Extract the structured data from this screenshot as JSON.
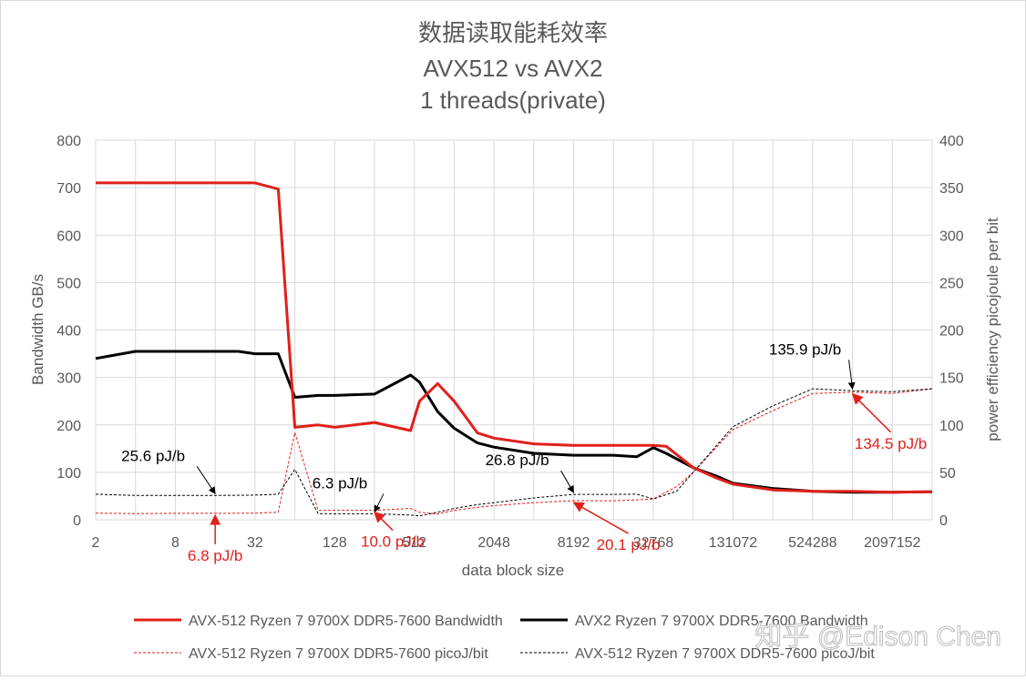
{
  "chart_data": {
    "type": "line",
    "title_lines": [
      "数据读取能耗效率",
      "AVX512 vs AVX2",
      "1 threads(private)"
    ],
    "xlabel": "data block size",
    "ylabel_left": "Bandwidth GB/s",
    "ylabel_right": "power efficiency picojoule per bit",
    "x_scale": "log2",
    "x_tick_labels": [
      "2",
      "8",
      "32",
      "128",
      "512",
      "2048",
      "8192",
      "32768",
      "131072",
      "524288",
      "2097152"
    ],
    "x_tick_values": [
      2,
      8,
      32,
      128,
      512,
      2048,
      8192,
      32768,
      131072,
      524288,
      2097152
    ],
    "xlim": [
      2,
      4194304
    ],
    "y_left_lim": [
      0,
      800
    ],
    "y_left_ticks": [
      0,
      100,
      200,
      300,
      400,
      500,
      600,
      700,
      800
    ],
    "y_right_lim": [
      0,
      400
    ],
    "y_right_ticks": [
      0,
      50,
      100,
      150,
      200,
      250,
      300,
      350,
      400
    ],
    "grid": true,
    "legend_position": "bottom",
    "series": [
      {
        "name": "AVX-512 Ryzen 7 9700X DDR5-7600 Bandwidth",
        "axis": "left",
        "style": "solid",
        "color": "#e0201b",
        "points": [
          [
            2,
            710
          ],
          [
            4,
            710
          ],
          [
            8,
            710
          ],
          [
            16,
            710
          ],
          [
            32,
            710
          ],
          [
            48,
            697
          ],
          [
            64,
            195
          ],
          [
            96,
            200
          ],
          [
            128,
            195
          ],
          [
            256,
            205
          ],
          [
            480,
            188
          ],
          [
            560,
            250
          ],
          [
            768,
            287
          ],
          [
            1024,
            250
          ],
          [
            1536,
            183
          ],
          [
            2048,
            172
          ],
          [
            4096,
            160
          ],
          [
            8192,
            157
          ],
          [
            16384,
            157
          ],
          [
            32768,
            157
          ],
          [
            40960,
            155
          ],
          [
            65536,
            110
          ],
          [
            98304,
            88
          ],
          [
            131072,
            75
          ],
          [
            262144,
            63
          ],
          [
            524288,
            60
          ],
          [
            1048576,
            60
          ],
          [
            2097152,
            58
          ],
          [
            4194304,
            59
          ]
        ]
      },
      {
        "name": "AVX2 Ryzen 7 9700X DDR5-7600 Bandwidth",
        "axis": "left",
        "style": "solid",
        "color": "#000000",
        "points": [
          [
            2,
            340
          ],
          [
            4,
            355
          ],
          [
            8,
            355
          ],
          [
            16,
            355
          ],
          [
            24,
            355
          ],
          [
            32,
            350
          ],
          [
            48,
            350
          ],
          [
            64,
            258
          ],
          [
            96,
            262
          ],
          [
            128,
            262
          ],
          [
            256,
            265
          ],
          [
            480,
            305
          ],
          [
            560,
            290
          ],
          [
            768,
            228
          ],
          [
            1024,
            193
          ],
          [
            1536,
            162
          ],
          [
            2048,
            153
          ],
          [
            4096,
            140
          ],
          [
            8192,
            136
          ],
          [
            16384,
            136
          ],
          [
            24576,
            133
          ],
          [
            32768,
            152
          ],
          [
            40960,
            140
          ],
          [
            65536,
            110
          ],
          [
            98304,
            92
          ],
          [
            131072,
            77
          ],
          [
            262144,
            66
          ],
          [
            524288,
            60
          ],
          [
            1048576,
            58
          ],
          [
            2097152,
            58
          ],
          [
            4194304,
            59
          ]
        ]
      },
      {
        "name": "AVX-512 Ryzen 7 9700X DDR5-7600 picoJ/bit",
        "axis": "right",
        "style": "dashed",
        "color": "#e0201b",
        "points": [
          [
            2,
            7
          ],
          [
            4,
            6.5
          ],
          [
            8,
            6.8
          ],
          [
            16,
            6.8
          ],
          [
            32,
            7
          ],
          [
            48,
            8
          ],
          [
            64,
            92
          ],
          [
            96,
            10
          ],
          [
            128,
            10
          ],
          [
            256,
            10
          ],
          [
            480,
            12
          ],
          [
            560,
            8
          ],
          [
            768,
            6
          ],
          [
            1024,
            10
          ],
          [
            1536,
            13
          ],
          [
            2048,
            15
          ],
          [
            4096,
            18
          ],
          [
            8192,
            20.1
          ],
          [
            16384,
            20
          ],
          [
            24576,
            21
          ],
          [
            32768,
            22
          ],
          [
            49152,
            35
          ],
          [
            65536,
            50
          ],
          [
            131072,
            95
          ],
          [
            262144,
            115
          ],
          [
            524288,
            133
          ],
          [
            1048576,
            134.5
          ],
          [
            2097152,
            133
          ],
          [
            4194304,
            138
          ]
        ]
      },
      {
        "name": "AVX-512 Ryzen 7 9700X DDR5-7600 picoJ/bit",
        "axis": "right",
        "style": "dashed",
        "color": "#000000",
        "points": [
          [
            2,
            27
          ],
          [
            4,
            25.6
          ],
          [
            8,
            25.6
          ],
          [
            16,
            25.6
          ],
          [
            32,
            26
          ],
          [
            48,
            27
          ],
          [
            64,
            53
          ],
          [
            96,
            6.5
          ],
          [
            128,
            6.3
          ],
          [
            256,
            6.3
          ],
          [
            480,
            5
          ],
          [
            560,
            4
          ],
          [
            768,
            8
          ],
          [
            1024,
            12
          ],
          [
            1536,
            16
          ],
          [
            2048,
            18
          ],
          [
            4096,
            23
          ],
          [
            8192,
            26.8
          ],
          [
            16384,
            26.8
          ],
          [
            24576,
            27
          ],
          [
            32768,
            22
          ],
          [
            49152,
            30
          ],
          [
            65536,
            50
          ],
          [
            131072,
            98
          ],
          [
            262144,
            120
          ],
          [
            524288,
            138
          ],
          [
            1048576,
            135.9
          ],
          [
            2097152,
            135
          ],
          [
            4194304,
            138
          ]
        ]
      }
    ],
    "annotations": [
      {
        "text": "25.6 pJ/b",
        "color": "black",
        "x": 16,
        "y_right": 25.6
      },
      {
        "text": "6.3 pJ/b",
        "color": "black",
        "x": 256,
        "y_right": 6.3
      },
      {
        "text": "26.8 pJ/b",
        "color": "black",
        "x": 8192,
        "y_right": 26.8
      },
      {
        "text": "135.9 pJ/b",
        "color": "black",
        "x": 1048576,
        "y_right": 135.9
      },
      {
        "text": "6.8 pJ/b",
        "color": "red",
        "x": 16,
        "y_right": 6.8
      },
      {
        "text": "10.0 pJ/b",
        "color": "red",
        "x": 256,
        "y_right": 10.0
      },
      {
        "text": "20.1 pJ/b",
        "color": "red",
        "x": 8192,
        "y_right": 20.1
      },
      {
        "text": "134.5 pJ/b",
        "color": "red",
        "x": 1048576,
        "y_right": 134.5
      }
    ]
  },
  "legend": [
    {
      "label": "AVX-512 Ryzen 7 9700X DDR5-7600 Bandwidth",
      "color": "#e0201b",
      "style": "solid"
    },
    {
      "label": "AVX2 Ryzen 7 9700X DDR5-7600 Bandwidth",
      "color": "#000000",
      "style": "solid"
    },
    {
      "label": "AVX-512 Ryzen 7 9700X DDR5-7600 picoJ/bit",
      "color": "#e0201b",
      "style": "dashed"
    },
    {
      "label": "AVX-512 Ryzen 7 9700X DDR5-7600 picoJ/bit",
      "color": "#000000",
      "style": "dashed"
    }
  ],
  "watermark": "知乎 @Edison Chen"
}
